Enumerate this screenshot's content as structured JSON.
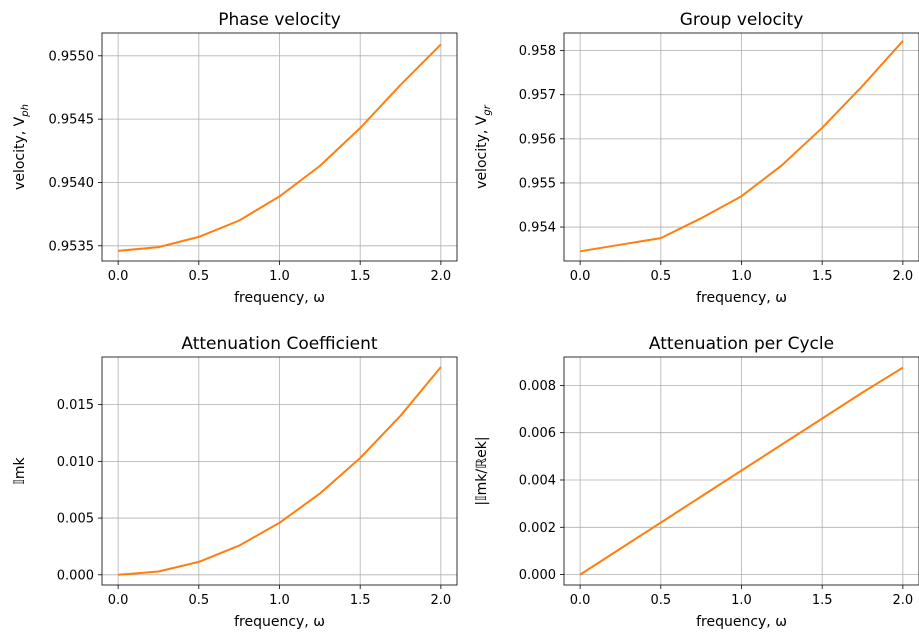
{
  "chart_data": [
    {
      "type": "line",
      "title": "Phase velocity",
      "xlabel": "frequency, ω",
      "ylabel": "velocity, V_ph",
      "xlim": [
        -0.1,
        2.1
      ],
      "ylim": [
        0.95338,
        0.95518
      ],
      "xticks": [
        0.0,
        0.5,
        1.0,
        1.5,
        2.0
      ],
      "xtick_labels": [
        "0.0",
        "0.5",
        "1.0",
        "1.5",
        "2.0"
      ],
      "yticks": [
        0.9535,
        0.954,
        0.9545,
        0.955
      ],
      "ytick_labels": [
        "0.9535",
        "0.9540",
        "0.9545",
        "0.9550"
      ],
      "grid": true,
      "series": [
        {
          "color": "#ff7f0e",
          "x": [
            0,
            0.25,
            0.5,
            0.75,
            1.0,
            1.25,
            1.5,
            1.75,
            2.0
          ],
          "y": [
            0.95346,
            0.95349,
            0.95357,
            0.9537,
            0.95389,
            0.95413,
            0.95443,
            0.95477,
            0.95509
          ]
        }
      ]
    },
    {
      "type": "line",
      "title": "Group velocity",
      "xlabel": "frequency, ω",
      "ylabel": "velocity, V_gr",
      "xlim": [
        -0.1,
        2.1
      ],
      "ylim": [
        0.95323,
        0.9584
      ],
      "xticks": [
        0.0,
        0.5,
        1.0,
        1.5,
        2.0
      ],
      "xtick_labels": [
        "0.0",
        "0.5",
        "1.0",
        "1.5",
        "2.0"
      ],
      "yticks": [
        0.954,
        0.955,
        0.956,
        0.957,
        0.958
      ],
      "ytick_labels": [
        "0.954",
        "0.955",
        "0.956",
        "0.957",
        "0.958"
      ],
      "grid": true,
      "series": [
        {
          "color": "#ff7f0e",
          "x": [
            0,
            0.25,
            0.5,
            0.75,
            1.0,
            1.25,
            1.5,
            1.75,
            2.0
          ],
          "y": [
            0.95345,
            0.9536,
            0.95375,
            0.9542,
            0.9547,
            0.9554,
            0.95625,
            0.9572,
            0.95822
          ]
        }
      ]
    },
    {
      "type": "line",
      "title": "Attenuation Coefficient",
      "xlabel": "frequency, ω",
      "ylabel": "𝕀mk",
      "xlim": [
        -0.1,
        2.1
      ],
      "ylim": [
        -0.0009,
        0.0192
      ],
      "xticks": [
        0.0,
        0.5,
        1.0,
        1.5,
        2.0
      ],
      "xtick_labels": [
        "0.0",
        "0.5",
        "1.0",
        "1.5",
        "2.0"
      ],
      "yticks": [
        0.0,
        0.005,
        0.01,
        0.015
      ],
      "ytick_labels": [
        "0.000",
        "0.005",
        "0.010",
        "0.015"
      ],
      "grid": true,
      "series": [
        {
          "color": "#ff7f0e",
          "x": [
            0,
            0.25,
            0.5,
            0.75,
            1.0,
            1.25,
            1.5,
            1.75,
            2.0
          ],
          "y": [
            0.0,
            0.00029,
            0.00114,
            0.00257,
            0.00458,
            0.00716,
            0.0103,
            0.01402,
            0.01832
          ]
        }
      ]
    },
    {
      "type": "line",
      "title": "Attenuation per Cycle",
      "xlabel": "frequency, ω",
      "ylabel": "|𝕀mk/ℝek|",
      "xlim": [
        -0.1,
        2.1
      ],
      "ylim": [
        -0.00044,
        0.0092
      ],
      "xticks": [
        0.0,
        0.5,
        1.0,
        1.5,
        2.0
      ],
      "xtick_labels": [
        "0.0",
        "0.5",
        "1.0",
        "1.5",
        "2.0"
      ],
      "yticks": [
        0.0,
        0.002,
        0.004,
        0.006,
        0.008
      ],
      "ytick_labels": [
        "0.000",
        "0.002",
        "0.004",
        "0.006",
        "0.008"
      ],
      "grid": true,
      "series": [
        {
          "color": "#ff7f0e",
          "x": [
            0,
            0.25,
            0.5,
            0.75,
            1.0,
            1.25,
            1.5,
            1.75,
            2.0
          ],
          "y": [
            0.0,
            0.0011,
            0.0022,
            0.0033,
            0.0044,
            0.0055,
            0.0066,
            0.0077,
            0.00875
          ]
        }
      ]
    }
  ]
}
